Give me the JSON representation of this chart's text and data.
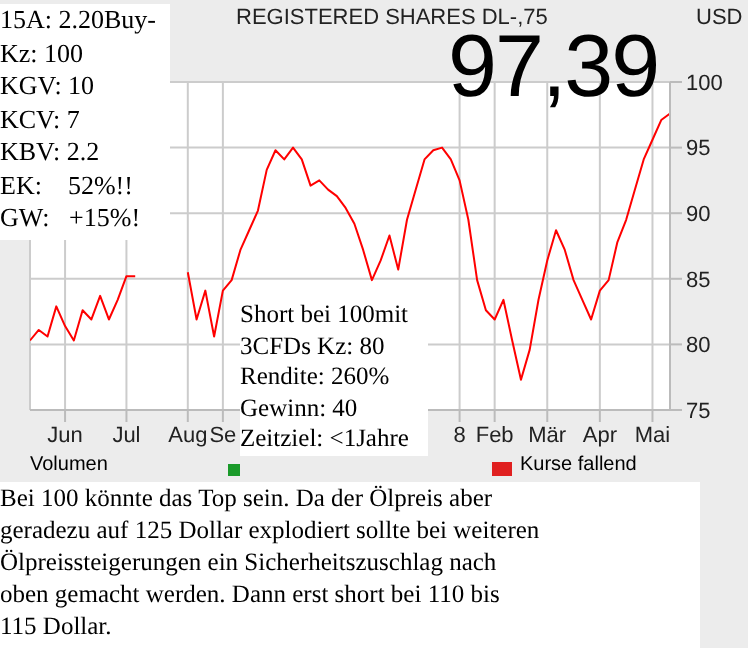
{
  "chart_data": {
    "type": "line",
    "title": "REGISTERED SHARES DL-,75",
    "ylabel": "USD",
    "categories": [
      null,
      null,
      null,
      null,
      "Jun",
      null,
      null,
      null,
      null,
      null,
      null,
      "Jul",
      null,
      null,
      null,
      null,
      null,
      null,
      "Aug",
      null,
      null,
      null,
      "Se",
      null,
      null,
      null,
      null,
      null,
      null,
      null,
      null,
      null,
      null,
      null,
      null,
      null,
      null,
      null,
      null,
      null,
      null,
      null,
      null,
      null,
      null,
      null,
      null,
      null,
      null,
      "8",
      null,
      null,
      null,
      "Feb",
      null,
      null,
      null,
      null,
      null,
      "Mär",
      null,
      null,
      null,
      null,
      null,
      "Apr",
      null,
      null,
      null,
      null,
      null,
      "Mai",
      null,
      null
    ],
    "series": [
      {
        "color": "#ff0000",
        "values": [
          80.3,
          81.1,
          80.6,
          82.9,
          81.4,
          80.3,
          82.6,
          81.9,
          83.7,
          81.9,
          83.4,
          85.2,
          85.2,
          null,
          null,
          null,
          null,
          null,
          85.5,
          81.9,
          84.1,
          80.6,
          84.1,
          84.9,
          87.2,
          88.7,
          90.2,
          93.3,
          94.8,
          94.1,
          95.0,
          94.1,
          92.1,
          92.5,
          91.8,
          91.3,
          90.4,
          89.2,
          87.2,
          84.9,
          86.4,
          88.3,
          85.7,
          89.5,
          91.8,
          94.1,
          94.8,
          95.0,
          94.1,
          92.5,
          89.5,
          84.9,
          82.6,
          81.9,
          83.4,
          80.3,
          77.3,
          79.6,
          83.4,
          86.4,
          88.7,
          87.2,
          84.9,
          83.4,
          81.9,
          84.1,
          84.9,
          87.8,
          89.5,
          91.8,
          94.1,
          95.6,
          97.1,
          97.6
        ]
      }
    ],
    "ylim": [
      75,
      100
    ],
    "yticks": [
      75,
      80,
      85,
      90,
      95,
      100
    ],
    "grid": true,
    "marker": "none",
    "line_style": "solid",
    "annotations": [
      "97,39",
      "15A: 2.20Buy-\nKz: 100\nKGV: 10\nKCV: 7\nKBV: 2.2\nEK:    52%!!\nGW:   +15%!",
      "Short bei 100mit\n3CFDs Kz: 80\nRendite: 260%\nGewinn: 40\nZeitziel: <1Jahre",
      "Bei 100 könnte das Top sein. Da der Ölpreis aber\ngeradezu auf 125 Dollar explodiert sollte bei weiteren\nÖlpreissteigerungen ein Sicherheitszuschlag nach\noben gemacht werden. Dann erst short bei 110 bis\n115 Dollar.",
      "Volumen",
      "Kurse fallend"
    ]
  }
}
